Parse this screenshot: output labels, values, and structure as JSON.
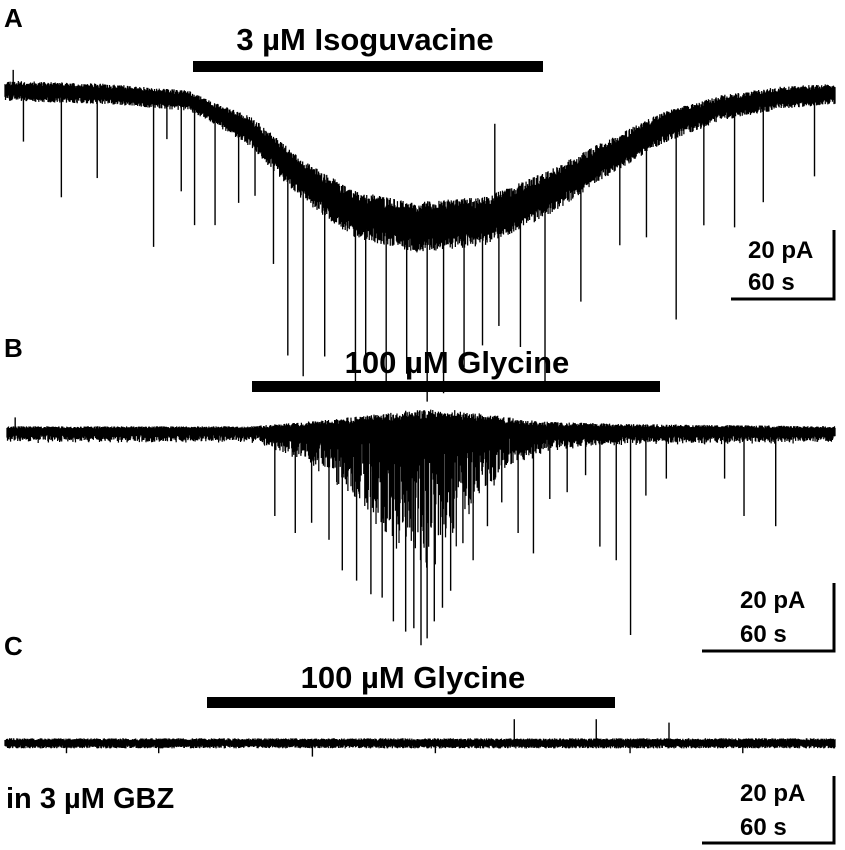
{
  "chart_data": [
    {
      "type": "line",
      "panel": "A",
      "drug_label": "3 µM Isoguvacine",
      "application_s": [
        165,
        505
      ],
      "xlim_s": [
        0,
        810
      ],
      "scale_bar": {
        "current_label": "20 pA",
        "time_label": "60 s",
        "current_pA": 20,
        "time_s": 60
      },
      "trace": {
        "baseline_pA": [
          [
            0,
            0
          ],
          [
            100,
            -1
          ],
          [
            180,
            -3
          ],
          [
            240,
            -12
          ],
          [
            290,
            -26
          ],
          [
            340,
            -36
          ],
          [
            400,
            -40
          ],
          [
            470,
            -38
          ],
          [
            530,
            -30
          ],
          [
            580,
            -21
          ],
          [
            640,
            -11
          ],
          [
            700,
            -5
          ],
          [
            760,
            -2
          ],
          [
            810,
            -1
          ]
        ],
        "noise_pA": [
          [
            0,
            4
          ],
          [
            200,
            4
          ],
          [
            260,
            7
          ],
          [
            330,
            9
          ],
          [
            420,
            10
          ],
          [
            520,
            9
          ],
          [
            600,
            7
          ],
          [
            700,
            5
          ],
          [
            810,
            4
          ]
        ],
        "events": [
          [
            18,
            -15
          ],
          [
            55,
            -31
          ],
          [
            90,
            -25
          ],
          [
            145,
            -44
          ],
          [
            158,
            -12
          ],
          [
            172,
            -27
          ],
          [
            185,
            -36
          ],
          [
            205,
            -33
          ],
          [
            228,
            -23
          ],
          [
            244,
            -18
          ],
          [
            262,
            -33
          ],
          [
            276,
            -56
          ],
          [
            291,
            -58
          ],
          [
            312,
            -48
          ],
          [
            342,
            -50
          ],
          [
            352,
            -46
          ],
          [
            372,
            -50
          ],
          [
            392,
            -44
          ],
          [
            412,
            -52
          ],
          [
            428,
            -50
          ],
          [
            448,
            -43
          ],
          [
            466,
            -37
          ],
          [
            482,
            -33
          ],
          [
            503,
            -42
          ],
          [
            527,
            -56
          ],
          [
            562,
            -38
          ],
          [
            600,
            -28
          ],
          [
            626,
            -30
          ],
          [
            655,
            -58
          ],
          [
            682,
            -33
          ],
          [
            712,
            -36
          ],
          [
            740,
            -30
          ],
          [
            790,
            -24
          ]
        ],
        "upward_events": [
          [
            478,
            27
          ],
          [
            8,
            6
          ]
        ]
      }
    },
    {
      "type": "line",
      "panel": "B",
      "drug_label": "100 µM Glycine",
      "application_s": [
        225,
        633
      ],
      "xlim_s": [
        0,
        810
      ],
      "scale_bar": {
        "current_label": "20 pA",
        "time_label": "60 s",
        "current_pA": 20,
        "time_s": 60
      },
      "trace": {
        "baseline_pA": [
          [
            0,
            0
          ],
          [
            810,
            0
          ]
        ],
        "noise_pA": [
          [
            0,
            2
          ],
          [
            240,
            2
          ],
          [
            320,
            5
          ],
          [
            400,
            9
          ],
          [
            440,
            9
          ],
          [
            520,
            4
          ],
          [
            600,
            3
          ],
          [
            810,
            2
          ]
        ],
        "envelope_pA": [
          [
            245,
            -2
          ],
          [
            290,
            -6
          ],
          [
            330,
            -14
          ],
          [
            370,
            -26
          ],
          [
            400,
            -34
          ],
          [
            420,
            -36
          ],
          [
            440,
            -28
          ],
          [
            460,
            -16
          ],
          [
            490,
            -7
          ],
          [
            530,
            -3
          ],
          [
            600,
            -2
          ]
        ],
        "events": [
          [
            262,
            -25
          ],
          [
            282,
            -30
          ],
          [
            298,
            -27
          ],
          [
            315,
            -32
          ],
          [
            328,
            -41
          ],
          [
            342,
            -44
          ],
          [
            356,
            -48
          ],
          [
            367,
            -49
          ],
          [
            378,
            -56
          ],
          [
            390,
            -59
          ],
          [
            398,
            -58
          ],
          [
            405,
            -63
          ],
          [
            411,
            -61
          ],
          [
            418,
            -56
          ],
          [
            426,
            -52
          ],
          [
            434,
            -47
          ],
          [
            446,
            -33
          ],
          [
            456,
            -38
          ],
          [
            470,
            -28
          ],
          [
            484,
            -21
          ],
          [
            500,
            -30
          ],
          [
            515,
            -36
          ],
          [
            531,
            -20
          ],
          [
            548,
            -18
          ],
          [
            566,
            -13
          ],
          [
            580,
            -34
          ],
          [
            596,
            -38
          ],
          [
            610,
            -60
          ],
          [
            625,
            -19
          ],
          [
            645,
            -14
          ],
          [
            702,
            -14
          ],
          [
            721,
            -25
          ],
          [
            752,
            -28
          ]
        ],
        "upward_events": [
          [
            8,
            4
          ]
        ]
      }
    },
    {
      "type": "line",
      "panel": "C",
      "drug_label": "100 µM Glycine",
      "condition": "in 3 µM GBZ",
      "application_s": [
        183,
        598
      ],
      "xlim_s": [
        0,
        810
      ],
      "scale_bar": {
        "current_label": "20 pA",
        "time_label": "60 s",
        "current_pA": 20,
        "time_s": 60
      },
      "trace": {
        "baseline_pA": [
          [
            0,
            0
          ],
          [
            810,
            0
          ]
        ],
        "noise_pA": [
          [
            0,
            2
          ],
          [
            810,
            2
          ]
        ],
        "events": [
          [
            60,
            -3
          ],
          [
            150,
            -3
          ],
          [
            300,
            -4
          ],
          [
            420,
            -3
          ],
          [
            610,
            -3
          ],
          [
            720,
            -3
          ]
        ],
        "upward_events": [
          [
            497,
            7
          ],
          [
            577,
            7
          ],
          [
            648,
            6
          ]
        ]
      }
    }
  ]
}
